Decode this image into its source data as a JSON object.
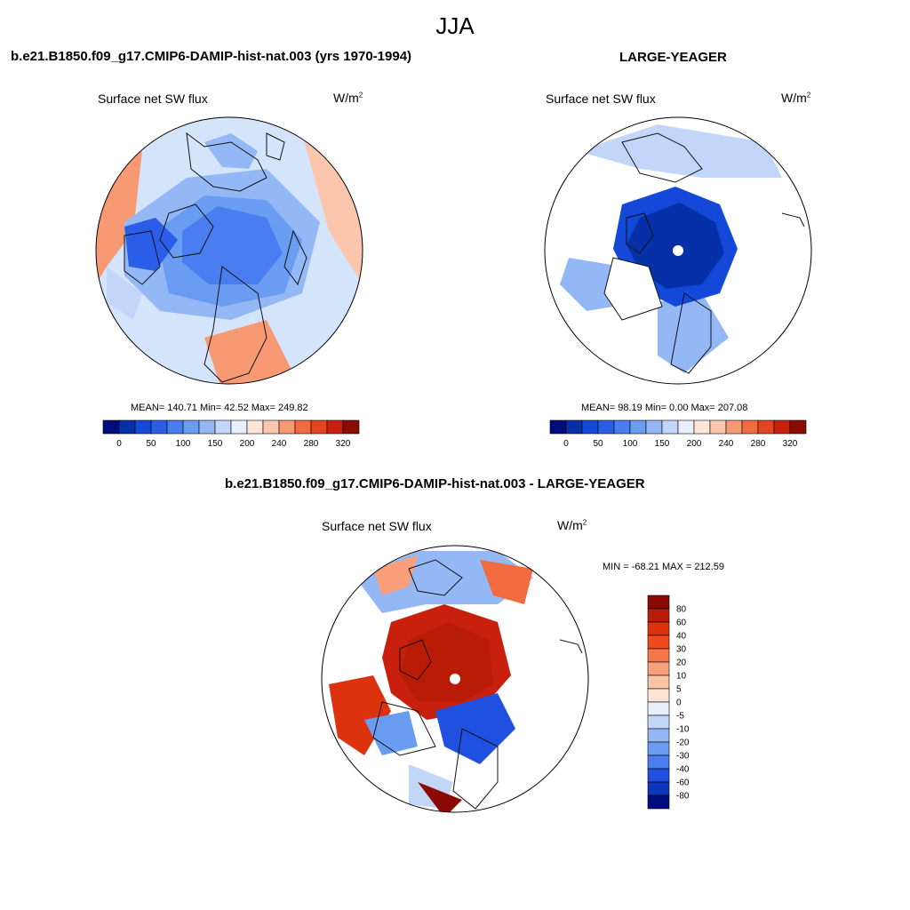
{
  "season": "JJA",
  "panels": [
    {
      "title": "b.e21.B1850.f09_g17.CMIP6-DAMIP-hist-nat.003 (yrs 1970-1994)",
      "variable": "Surface net SW flux",
      "units_base": "W/m",
      "units_exp": "2",
      "stats": "MEAN= 140.71  Min=  42.52  Max= 249.82",
      "mean": 140.71,
      "min": 42.52,
      "max": 249.82
    },
    {
      "title": "LARGE-YEAGER",
      "variable": "Surface net SW flux",
      "units_base": "W/m",
      "units_exp": "2",
      "stats": "MEAN=  98.19  Min=   0.00  Max= 207.08",
      "mean": 98.19,
      "min": 0.0,
      "max": 207.08
    },
    {
      "title": "b.e21.B1850.f09_g17.CMIP6-DAMIP-hist-nat.003 - LARGE-YEAGER",
      "variable": "Surface net SW flux",
      "units_base": "W/m",
      "units_exp": "2",
      "stats": "MIN = -68.21 MAX = 212.59",
      "min": -68.21,
      "max": 212.59
    }
  ],
  "abs_colorbar": {
    "colors": [
      "#000c7e",
      "#0630a8",
      "#1348d8",
      "#2a5ee8",
      "#4a7ef0",
      "#6a9cf2",
      "#94b8f6",
      "#c2d6fa",
      "#e8f0fd",
      "#fde6d8",
      "#fbc6ac",
      "#f79a74",
      "#f26a40",
      "#e44420",
      "#c8200c",
      "#8c0a04"
    ],
    "labels": [
      "0",
      "50",
      "100",
      "150",
      "200",
      "240",
      "280",
      "320"
    ]
  },
  "diff_colorbar": {
    "colors": [
      "#8c0a04",
      "#b81c06",
      "#dc320e",
      "#f04a20",
      "#f6784a",
      "#f9a07a",
      "#fbc4a6",
      "#fde6d8",
      "#e8f0fd",
      "#c2d6fa",
      "#94b8f6",
      "#6a9cf2",
      "#4a7ef0",
      "#2050e0",
      "#0c36b8",
      "#000c7e"
    ],
    "labels": [
      "80",
      "60",
      "40",
      "30",
      "20",
      "10",
      "5",
      "0",
      "-5",
      "-10",
      "-20",
      "-30",
      "-40",
      "-60",
      "-80"
    ]
  }
}
